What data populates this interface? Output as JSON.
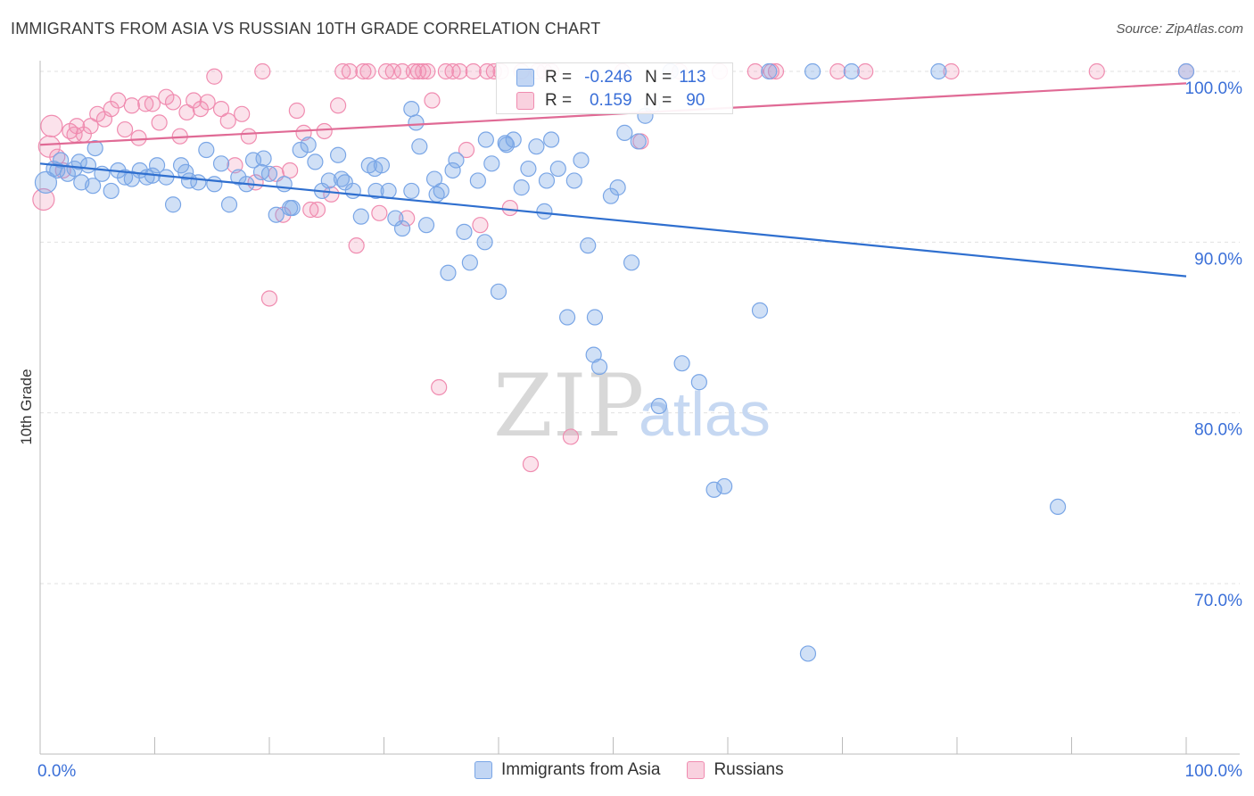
{
  "title": "IMMIGRANTS FROM ASIA VS RUSSIAN 10TH GRADE CORRELATION CHART",
  "source": "Source: ZipAtlas.com",
  "watermark": {
    "zip": "ZIP",
    "atlas": "atlas"
  },
  "colors": {
    "blue_fill": "rgba(120,165,230,0.35)",
    "blue_stroke": "#7aa6e6",
    "blue_line": "#2f6fcf",
    "pink_fill": "rgba(240,140,175,0.25)",
    "pink_stroke": "#f08cb0",
    "pink_line": "#e06a95",
    "axis_text": "#3a6fd8",
    "grid": "#e0e0e0"
  },
  "legend": {
    "series1": "Immigrants from Asia",
    "series2": "Russians"
  },
  "stats": {
    "r_label": "R =",
    "n_label": "N =",
    "blue": {
      "r": "-0.246",
      "n": "113"
    },
    "pink": {
      "r": " 0.159",
      "n": "90"
    }
  },
  "chart_data": {
    "type": "scatter",
    "title": "IMMIGRANTS FROM ASIA VS RUSSIAN 10TH GRADE CORRELATION CHART",
    "xlabel": "",
    "ylabel": "10th Grade",
    "xlim": [
      0,
      100
    ],
    "ylim": [
      60,
      101.5
    ],
    "x_tick_labels": [
      "0.0%",
      "100.0%"
    ],
    "y_ticks": [
      70,
      80,
      90,
      100
    ],
    "y_tick_labels": [
      "70.0%",
      "80.0%",
      "90.0%",
      "100.0%"
    ],
    "grid": true,
    "legend_position": "bottom",
    "series": [
      {
        "name": "Immigrants from Asia",
        "trend": {
          "x": [
            0,
            100
          ],
          "y": [
            94.6,
            88.0
          ]
        },
        "points": [
          [
            0.5,
            93.5
          ],
          [
            1.2,
            94.3
          ],
          [
            1.8,
            94.8
          ],
          [
            2.4,
            94.0
          ],
          [
            3.0,
            94.3
          ],
          [
            3.6,
            93.5
          ],
          [
            1.5,
            94.2
          ],
          [
            4.2,
            94.5
          ],
          [
            4.8,
            95.5
          ],
          [
            5.4,
            94.0
          ],
          [
            6.2,
            93.0
          ],
          [
            6.8,
            94.2
          ],
          [
            7.4,
            93.8
          ],
          [
            8.0,
            93.7
          ],
          [
            8.7,
            94.2
          ],
          [
            9.3,
            93.8
          ],
          [
            10.2,
            94.5
          ],
          [
            11.0,
            93.8
          ],
          [
            11.6,
            92.2
          ],
          [
            12.3,
            94.5
          ],
          [
            13.0,
            93.6
          ],
          [
            13.8,
            93.5
          ],
          [
            14.5,
            95.4
          ],
          [
            15.2,
            93.4
          ],
          [
            15.8,
            94.6
          ],
          [
            16.5,
            92.2
          ],
          [
            17.3,
            93.8
          ],
          [
            18.0,
            93.4
          ],
          [
            18.6,
            94.8
          ],
          [
            19.3,
            94.1
          ],
          [
            20.0,
            94.0
          ],
          [
            20.6,
            91.6
          ],
          [
            21.3,
            93.4
          ],
          [
            22.0,
            92.0
          ],
          [
            22.7,
            95.4
          ],
          [
            23.4,
            95.7
          ],
          [
            24.0,
            94.7
          ],
          [
            24.6,
            93.0
          ],
          [
            25.2,
            93.6
          ],
          [
            26.0,
            95.1
          ],
          [
            26.6,
            93.5
          ],
          [
            27.3,
            93.0
          ],
          [
            28.0,
            91.5
          ],
          [
            28.7,
            94.5
          ],
          [
            29.3,
            93.0
          ],
          [
            29.8,
            94.5
          ],
          [
            30.4,
            93.0
          ],
          [
            31.0,
            91.4
          ],
          [
            31.6,
            90.8
          ],
          [
            32.4,
            93.0
          ],
          [
            33.1,
            95.6
          ],
          [
            33.7,
            91.0
          ],
          [
            34.4,
            93.7
          ],
          [
            35.0,
            93.0
          ],
          [
            35.6,
            88.2
          ],
          [
            36.3,
            94.8
          ],
          [
            37.0,
            90.6
          ],
          [
            37.5,
            88.8
          ],
          [
            38.2,
            93.6
          ],
          [
            38.8,
            90.0
          ],
          [
            39.4,
            94.6
          ],
          [
            40.0,
            87.1
          ],
          [
            40.7,
            95.7
          ],
          [
            41.3,
            96.0
          ],
          [
            42.0,
            93.2
          ],
          [
            42.6,
            94.3
          ],
          [
            43.3,
            95.6
          ],
          [
            44.0,
            91.8
          ],
          [
            44.6,
            96.0
          ],
          [
            45.2,
            94.3
          ],
          [
            46.0,
            85.6
          ],
          [
            46.6,
            93.6
          ],
          [
            47.2,
            94.8
          ],
          [
            47.8,
            89.8
          ],
          [
            48.3,
            83.4
          ],
          [
            48.8,
            82.7
          ],
          [
            48.4,
            85.6
          ],
          [
            49.8,
            92.7
          ],
          [
            50.4,
            93.2
          ],
          [
            51.0,
            96.4
          ],
          [
            51.6,
            88.8
          ],
          [
            52.2,
            95.9
          ],
          [
            52.8,
            97.4
          ],
          [
            53.4,
            98.0
          ],
          [
            54.0,
            80.4
          ],
          [
            55.0,
            100.0
          ],
          [
            56.0,
            82.9
          ],
          [
            57.5,
            81.8
          ],
          [
            58.8,
            75.5
          ],
          [
            59.7,
            75.7
          ],
          [
            62.8,
            86.0
          ],
          [
            63.6,
            100.0
          ],
          [
            67.0,
            65.9
          ],
          [
            67.4,
            100.0
          ],
          [
            70.8,
            100.0
          ],
          [
            78.4,
            100.0
          ],
          [
            88.8,
            74.5
          ],
          [
            100.0,
            100.0
          ],
          [
            32.4,
            97.8
          ],
          [
            32.8,
            97.0
          ],
          [
            34.6,
            92.8
          ],
          [
            36.0,
            94.2
          ],
          [
            38.9,
            96.0
          ],
          [
            40.6,
            95.8
          ],
          [
            44.2,
            93.6
          ],
          [
            19.5,
            94.9
          ],
          [
            21.8,
            92.0
          ],
          [
            12.7,
            94.1
          ],
          [
            9.8,
            93.9
          ],
          [
            3.4,
            94.7
          ],
          [
            4.6,
            93.3
          ],
          [
            26.3,
            93.7
          ],
          [
            29.2,
            94.3
          ]
        ]
      },
      {
        "name": "Russians",
        "trend": {
          "x": [
            0,
            100
          ],
          "y": [
            95.7,
            99.3
          ]
        },
        "points": [
          [
            0.3,
            92.5
          ],
          [
            0.8,
            95.6
          ],
          [
            1.5,
            95.0
          ],
          [
            2.0,
            94.2
          ],
          [
            2.6,
            96.5
          ],
          [
            3.2,
            96.8
          ],
          [
            3.8,
            96.3
          ],
          [
            4.4,
            96.8
          ],
          [
            5.0,
            97.5
          ],
          [
            5.6,
            97.2
          ],
          [
            6.2,
            97.8
          ],
          [
            6.8,
            98.3
          ],
          [
            7.4,
            96.6
          ],
          [
            8.0,
            98.0
          ],
          [
            8.6,
            96.1
          ],
          [
            9.2,
            98.1
          ],
          [
            9.8,
            98.1
          ],
          [
            10.4,
            97.0
          ],
          [
            11.0,
            98.5
          ],
          [
            11.6,
            98.2
          ],
          [
            12.2,
            96.2
          ],
          [
            12.8,
            97.6
          ],
          [
            13.4,
            98.3
          ],
          [
            14.0,
            97.8
          ],
          [
            14.6,
            98.2
          ],
          [
            15.2,
            99.7
          ],
          [
            15.8,
            97.8
          ],
          [
            16.4,
            97.1
          ],
          [
            17.0,
            94.5
          ],
          [
            17.6,
            97.5
          ],
          [
            18.2,
            96.2
          ],
          [
            18.8,
            93.5
          ],
          [
            19.4,
            100.0
          ],
          [
            20.0,
            86.7
          ],
          [
            20.6,
            94.0
          ],
          [
            21.2,
            91.6
          ],
          [
            21.8,
            94.2
          ],
          [
            22.4,
            97.7
          ],
          [
            23.0,
            96.4
          ],
          [
            23.6,
            91.9
          ],
          [
            24.2,
            91.9
          ],
          [
            24.8,
            96.5
          ],
          [
            25.4,
            92.8
          ],
          [
            26.0,
            98.0
          ],
          [
            26.4,
            100.0
          ],
          [
            27.0,
            100.0
          ],
          [
            27.6,
            89.8
          ],
          [
            28.2,
            100.0
          ],
          [
            28.6,
            100.0
          ],
          [
            29.6,
            91.7
          ],
          [
            30.2,
            100.0
          ],
          [
            30.8,
            100.0
          ],
          [
            31.6,
            100.0
          ],
          [
            32.0,
            91.4
          ],
          [
            32.6,
            100.0
          ],
          [
            33.0,
            100.0
          ],
          [
            33.4,
            100.0
          ],
          [
            33.8,
            100.0
          ],
          [
            34.2,
            98.3
          ],
          [
            34.8,
            81.5
          ],
          [
            35.4,
            100.0
          ],
          [
            36.0,
            100.0
          ],
          [
            36.6,
            100.0
          ],
          [
            37.2,
            95.4
          ],
          [
            37.8,
            100.0
          ],
          [
            38.4,
            91.0
          ],
          [
            39.0,
            100.0
          ],
          [
            39.6,
            100.0
          ],
          [
            40.2,
            100.0
          ],
          [
            41.0,
            92.0
          ],
          [
            42.0,
            100.0
          ],
          [
            42.8,
            77.0
          ],
          [
            43.4,
            100.0
          ],
          [
            44.0,
            100.0
          ],
          [
            44.6,
            100.0
          ],
          [
            46.3,
            78.6
          ],
          [
            50.8,
            100.0
          ],
          [
            52.4,
            95.9
          ],
          [
            55.8,
            100.0
          ],
          [
            59.3,
            100.0
          ],
          [
            62.4,
            100.0
          ],
          [
            63.8,
            100.0
          ],
          [
            64.2,
            100.0
          ],
          [
            69.6,
            100.0
          ],
          [
            72.0,
            100.0
          ],
          [
            79.5,
            100.0
          ],
          [
            92.2,
            100.0
          ],
          [
            100.0,
            100.0
          ],
          [
            1.0,
            96.8
          ],
          [
            3.0,
            96.3
          ]
        ]
      }
    ]
  }
}
